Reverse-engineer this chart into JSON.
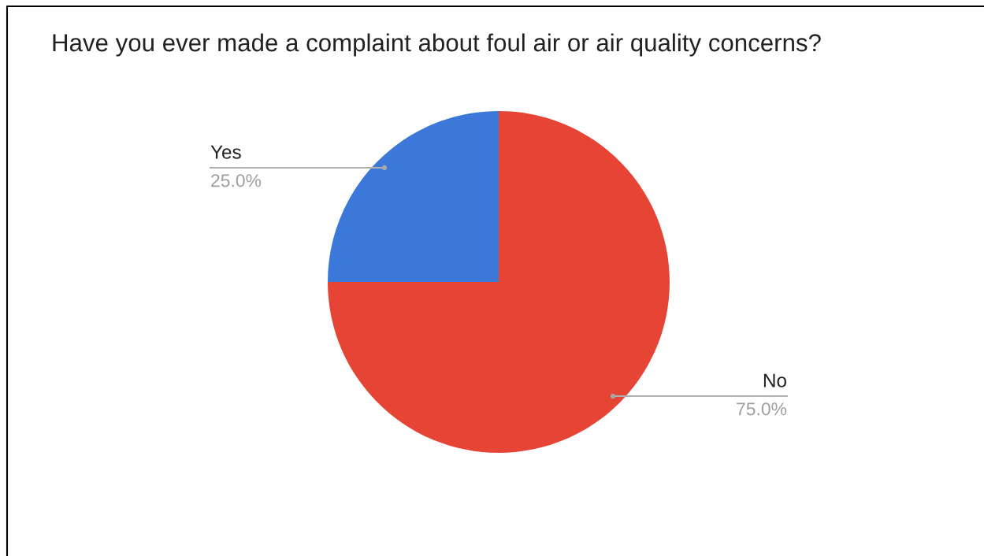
{
  "chart_data": {
    "type": "pie",
    "title": "Have you ever made a complaint about foul air or air quality concerns?",
    "categories": [
      "Yes",
      "No"
    ],
    "values": [
      25,
      75
    ],
    "colors": [
      "#3c78d8",
      "#e64434"
    ],
    "value_labels": [
      "25.0%",
      "75.0%"
    ]
  }
}
